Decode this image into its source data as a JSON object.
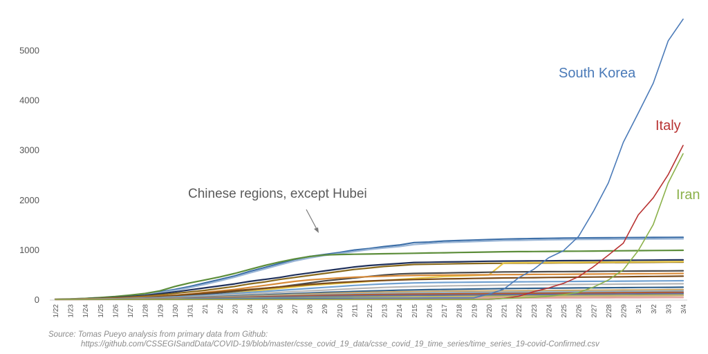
{
  "chart_data": {
    "type": "line",
    "title": "",
    "xlabel": "",
    "ylabel": "",
    "ylim": [
      0,
      5700
    ],
    "y_ticks": [
      0,
      1000,
      2000,
      3000,
      4000,
      5000
    ],
    "categories": [
      "1/22",
      "1/23",
      "1/24",
      "1/25",
      "1/26",
      "1/27",
      "1/28",
      "1/29",
      "1/30",
      "1/31",
      "2/1",
      "2/2",
      "2/3",
      "2/4",
      "2/5",
      "2/6",
      "2/7",
      "2/8",
      "2/9",
      "2/10",
      "2/11",
      "2/12",
      "2/13",
      "2/14",
      "2/15",
      "2/16",
      "2/17",
      "2/18",
      "2/19",
      "2/20",
      "2/21",
      "2/22",
      "2/23",
      "2/24",
      "2/25",
      "2/26",
      "2/27",
      "2/28",
      "2/29",
      "3/1",
      "3/2",
      "3/3",
      "3/4"
    ],
    "grid": false,
    "legend": "none",
    "series": [
      {
        "name": "South Korea",
        "color": "#4a7ab8",
        "labeled": true,
        "values": [
          1,
          1,
          2,
          2,
          3,
          4,
          4,
          4,
          4,
          11,
          12,
          15,
          15,
          16,
          19,
          23,
          24,
          24,
          25,
          27,
          28,
          28,
          28,
          28,
          28,
          29,
          30,
          31,
          31,
          104,
          204,
          433,
          602,
          833,
          977,
          1261,
          1766,
          2337,
          3150,
          3736,
          4335,
          5186,
          5621
        ]
      },
      {
        "name": "Italy",
        "color": "#b83232",
        "labeled": true,
        "values": [
          0,
          0,
          0,
          0,
          0,
          0,
          0,
          0,
          0,
          2,
          2,
          2,
          2,
          2,
          2,
          2,
          3,
          3,
          3,
          3,
          3,
          3,
          3,
          3,
          3,
          3,
          3,
          3,
          3,
          3,
          20,
          62,
          155,
          229,
          322,
          453,
          655,
          888,
          1128,
          1694,
          2036,
          2502,
          3089
        ]
      },
      {
        "name": "Iran",
        "color": "#8bb14a",
        "labeled": true,
        "values": [
          0,
          0,
          0,
          0,
          0,
          0,
          0,
          0,
          0,
          0,
          0,
          0,
          0,
          0,
          0,
          0,
          0,
          0,
          0,
          0,
          0,
          0,
          0,
          0,
          0,
          0,
          0,
          0,
          2,
          5,
          18,
          28,
          43,
          61,
          95,
          139,
          245,
          388,
          593,
          978,
          1501,
          2336,
          2922
        ]
      },
      {
        "name": "",
        "color": "#3d6fa8",
        "labeled": false,
        "values": [
          5,
          9,
          18,
          33,
          53,
          78,
          110,
          150,
          200,
          260,
          330,
          400,
          470,
          560,
          640,
          720,
          800,
          860,
          900,
          940,
          990,
          1020,
          1060,
          1090,
          1140,
          1150,
          1170,
          1180,
          1190,
          1200,
          1210,
          1215,
          1220,
          1225,
          1230,
          1232,
          1234,
          1236,
          1238,
          1240,
          1242,
          1244,
          1245
        ]
      },
      {
        "name": "",
        "color": "#9bb6d6",
        "labeled": false,
        "values": [
          4,
          7,
          14,
          27,
          44,
          65,
          95,
          135,
          180,
          235,
          300,
          370,
          445,
          530,
          610,
          690,
          770,
          830,
          880,
          920,
          960,
          1000,
          1030,
          1060,
          1100,
          1120,
          1140,
          1150,
          1160,
          1170,
          1180,
          1185,
          1190,
          1195,
          1200,
          1203,
          1205,
          1207,
          1209,
          1210,
          1212,
          1213,
          1215
        ]
      },
      {
        "name": "",
        "color": "#5c8d3a",
        "labeled": false,
        "values": [
          6,
          10,
          20,
          36,
          57,
          84,
          118,
          170,
          260,
          330,
          390,
          450,
          520,
          600,
          680,
          750,
          810,
          860,
          890,
          900,
          905,
          910,
          915,
          920,
          925,
          930,
          935,
          940,
          945,
          950,
          955,
          958,
          960,
          962,
          965,
          967,
          970,
          972,
          975,
          978,
          980,
          982,
          984
        ]
      },
      {
        "name": "",
        "color": "#1e2f5a",
        "labeled": false,
        "values": [
          3,
          6,
          12,
          22,
          36,
          55,
          80,
          115,
          150,
          190,
          230,
          270,
          310,
          360,
          400,
          440,
          490,
          530,
          570,
          610,
          650,
          680,
          700,
          720,
          740,
          745,
          750,
          755,
          760,
          765,
          768,
          770,
          772,
          774,
          776,
          778,
          780,
          782,
          784,
          786,
          788,
          790,
          792
        ]
      },
      {
        "name": "",
        "color": "#8a6a1c",
        "labeled": false,
        "values": [
          2,
          5,
          10,
          18,
          30,
          45,
          65,
          90,
          120,
          150,
          180,
          220,
          260,
          310,
          350,
          400,
          440,
          480,
          520,
          560,
          600,
          630,
          660,
          680,
          700,
          705,
          710,
          715,
          720,
          722,
          724,
          726,
          728,
          730,
          732,
          734,
          736,
          738,
          740,
          742,
          744,
          746,
          748
        ]
      },
      {
        "name": "",
        "color": "#e8c646",
        "labeled": false,
        "values": [
          1,
          2,
          4,
          7,
          12,
          18,
          25,
          35,
          45,
          60,
          80,
          100,
          130,
          160,
          190,
          220,
          250,
          280,
          300,
          320,
          340,
          360,
          380,
          400,
          420,
          440,
          460,
          470,
          480,
          490,
          730,
          735,
          738,
          740,
          742,
          744,
          746,
          748,
          750,
          752,
          754,
          756,
          758
        ]
      },
      {
        "name": "",
        "color": "#4a4a4a",
        "labeled": false,
        "values": [
          1,
          2,
          5,
          9,
          15,
          23,
          33,
          45,
          60,
          80,
          100,
          130,
          160,
          190,
          220,
          250,
          290,
          330,
          370,
          400,
          430,
          460,
          490,
          510,
          520,
          525,
          530,
          535,
          540,
          545,
          550,
          552,
          554,
          556,
          558,
          560,
          562,
          564,
          566,
          568,
          570,
          572,
          574
        ]
      },
      {
        "name": "",
        "color": "#d98c3a",
        "labeled": false,
        "values": [
          2,
          4,
          8,
          14,
          22,
          33,
          47,
          65,
          85,
          110,
          140,
          170,
          200,
          240,
          280,
          320,
          360,
          390,
          410,
          430,
          445,
          455,
          465,
          475,
          480,
          484,
          488,
          490,
          492,
          494,
          496,
          498,
          500,
          502,
          504,
          506,
          508,
          510,
          512,
          514,
          516,
          518,
          520
        ]
      },
      {
        "name": "",
        "color": "#7a4a18",
        "labeled": false,
        "values": [
          1,
          3,
          6,
          11,
          18,
          27,
          39,
          55,
          75,
          100,
          125,
          150,
          175,
          200,
          225,
          250,
          275,
          300,
          320,
          340,
          355,
          370,
          380,
          390,
          398,
          404,
          410,
          415,
          420,
          425,
          430,
          433,
          436,
          439,
          442,
          445,
          448,
          451,
          454,
          457,
          460,
          463,
          466
        ]
      },
      {
        "name": "",
        "color": "#6fa0d0",
        "labeled": false,
        "values": [
          1,
          2,
          4,
          8,
          13,
          20,
          28,
          38,
          50,
          64,
          80,
          100,
          120,
          140,
          160,
          180,
          200,
          220,
          240,
          260,
          280,
          295,
          310,
          320,
          330,
          335,
          340,
          343,
          346,
          348,
          350,
          352,
          354,
          356,
          358,
          360,
          362,
          364,
          366,
          368,
          370,
          372,
          374
        ]
      },
      {
        "name": "",
        "color": "#b6b6b6",
        "labeled": false,
        "values": [
          1,
          2,
          3,
          6,
          10,
          15,
          22,
          30,
          40,
          52,
          66,
          80,
          95,
          110,
          125,
          140,
          155,
          170,
          185,
          200,
          215,
          228,
          240,
          250,
          258,
          264,
          270,
          274,
          278,
          282,
          286,
          289,
          292,
          295,
          298,
          300,
          302,
          304,
          306,
          308,
          310,
          312,
          314
        ]
      },
      {
        "name": "",
        "color": "#2f5f8a",
        "labeled": false,
        "values": [
          1,
          2,
          3,
          5,
          8,
          12,
          17,
          23,
          30,
          38,
          47,
          57,
          68,
          80,
          92,
          104,
          116,
          128,
          140,
          150,
          160,
          168,
          176,
          184,
          190,
          195,
          200,
          204,
          208,
          212,
          216,
          219,
          222,
          225,
          228,
          230,
          232,
          234,
          236,
          238,
          240,
          242,
          244
        ]
      },
      {
        "name": "",
        "color": "#c9a86a",
        "labeled": false,
        "values": [
          0,
          1,
          2,
          4,
          6,
          9,
          13,
          18,
          24,
          31,
          39,
          48,
          58,
          68,
          78,
          88,
          98,
          108,
          118,
          128,
          136,
          142,
          148,
          152,
          156,
          160,
          163,
          166,
          168,
          170,
          172,
          174,
          176,
          178,
          180,
          182,
          184,
          186,
          188,
          190,
          192,
          194,
          196
        ]
      },
      {
        "name": "",
        "color": "#8fb0c8",
        "labeled": false,
        "values": [
          0,
          1,
          2,
          3,
          5,
          7,
          10,
          14,
          19,
          25,
          32,
          40,
          48,
          56,
          64,
          72,
          80,
          88,
          96,
          104,
          110,
          115,
          120,
          124,
          128,
          131,
          134,
          136,
          138,
          140,
          142,
          144,
          146,
          148,
          150,
          152,
          154,
          156,
          158,
          160,
          162,
          164,
          166
        ]
      },
      {
        "name": "",
        "color": "#b55a2a",
        "labeled": false,
        "values": [
          0,
          1,
          1,
          2,
          4,
          6,
          8,
          11,
          15,
          20,
          26,
          33,
          40,
          47,
          54,
          61,
          68,
          75,
          82,
          88,
          92,
          96,
          100,
          103,
          106,
          108,
          110,
          112,
          114,
          116,
          118,
          120,
          122,
          124,
          126,
          128,
          130,
          132,
          134,
          136,
          138,
          140,
          142
        ]
      },
      {
        "name": "",
        "color": "#6a6a9a",
        "labeled": false,
        "values": [
          0,
          0,
          1,
          2,
          3,
          4,
          6,
          8,
          11,
          15,
          19,
          24,
          29,
          34,
          39,
          44,
          49,
          54,
          59,
          64,
          68,
          72,
          75,
          78,
          80,
          82,
          84,
          86,
          88,
          90,
          92,
          94,
          96,
          98,
          100,
          102,
          104,
          106,
          108,
          110,
          112,
          114,
          116
        ]
      },
      {
        "name": "",
        "color": "#a0b85a",
        "labeled": false,
        "values": [
          0,
          0,
          1,
          1,
          2,
          3,
          4,
          6,
          8,
          10,
          13,
          16,
          19,
          22,
          25,
          28,
          31,
          34,
          37,
          40,
          43,
          46,
          48,
          50,
          52,
          54,
          56,
          58,
          60,
          62,
          64,
          66,
          68,
          70,
          72,
          74,
          76,
          78,
          80,
          82,
          84,
          86,
          88
        ]
      },
      {
        "name": "",
        "color": "#d4b080",
        "labeled": false,
        "values": [
          0,
          0,
          0,
          1,
          1,
          2,
          3,
          4,
          5,
          7,
          9,
          11,
          13,
          15,
          17,
          19,
          21,
          23,
          25,
          27,
          29,
          31,
          33,
          35,
          37,
          39,
          41,
          43,
          45,
          47,
          49,
          51,
          53,
          55,
          57,
          59,
          61,
          63,
          65,
          67,
          69,
          71,
          73
        ]
      },
      {
        "name": "",
        "color": "#e0a0a0",
        "labeled": false,
        "values": [
          0,
          0,
          0,
          0,
          1,
          1,
          2,
          3,
          4,
          5,
          6,
          7,
          8,
          9,
          10,
          11,
          12,
          13,
          14,
          15,
          16,
          17,
          18,
          19,
          20,
          21,
          22,
          23,
          24,
          25,
          26,
          27,
          28,
          29,
          30,
          31,
          32,
          33,
          34,
          35,
          36,
          37,
          38
        ]
      }
    ],
    "series_labels": {
      "south_korea": "South Korea",
      "italy": "Italy",
      "iran": "Iran"
    },
    "annotation": "Chinese regions, except Hubei"
  },
  "source": {
    "line1": "Source: Tomas Pueyo analysis from primary data from Github:",
    "line2": "https://github.com/CSSEGISandData/COVID-19/blob/master/csse_covid_19_data/csse_covid_19_time_series/time_series_19-covid-Confirmed.csv"
  }
}
